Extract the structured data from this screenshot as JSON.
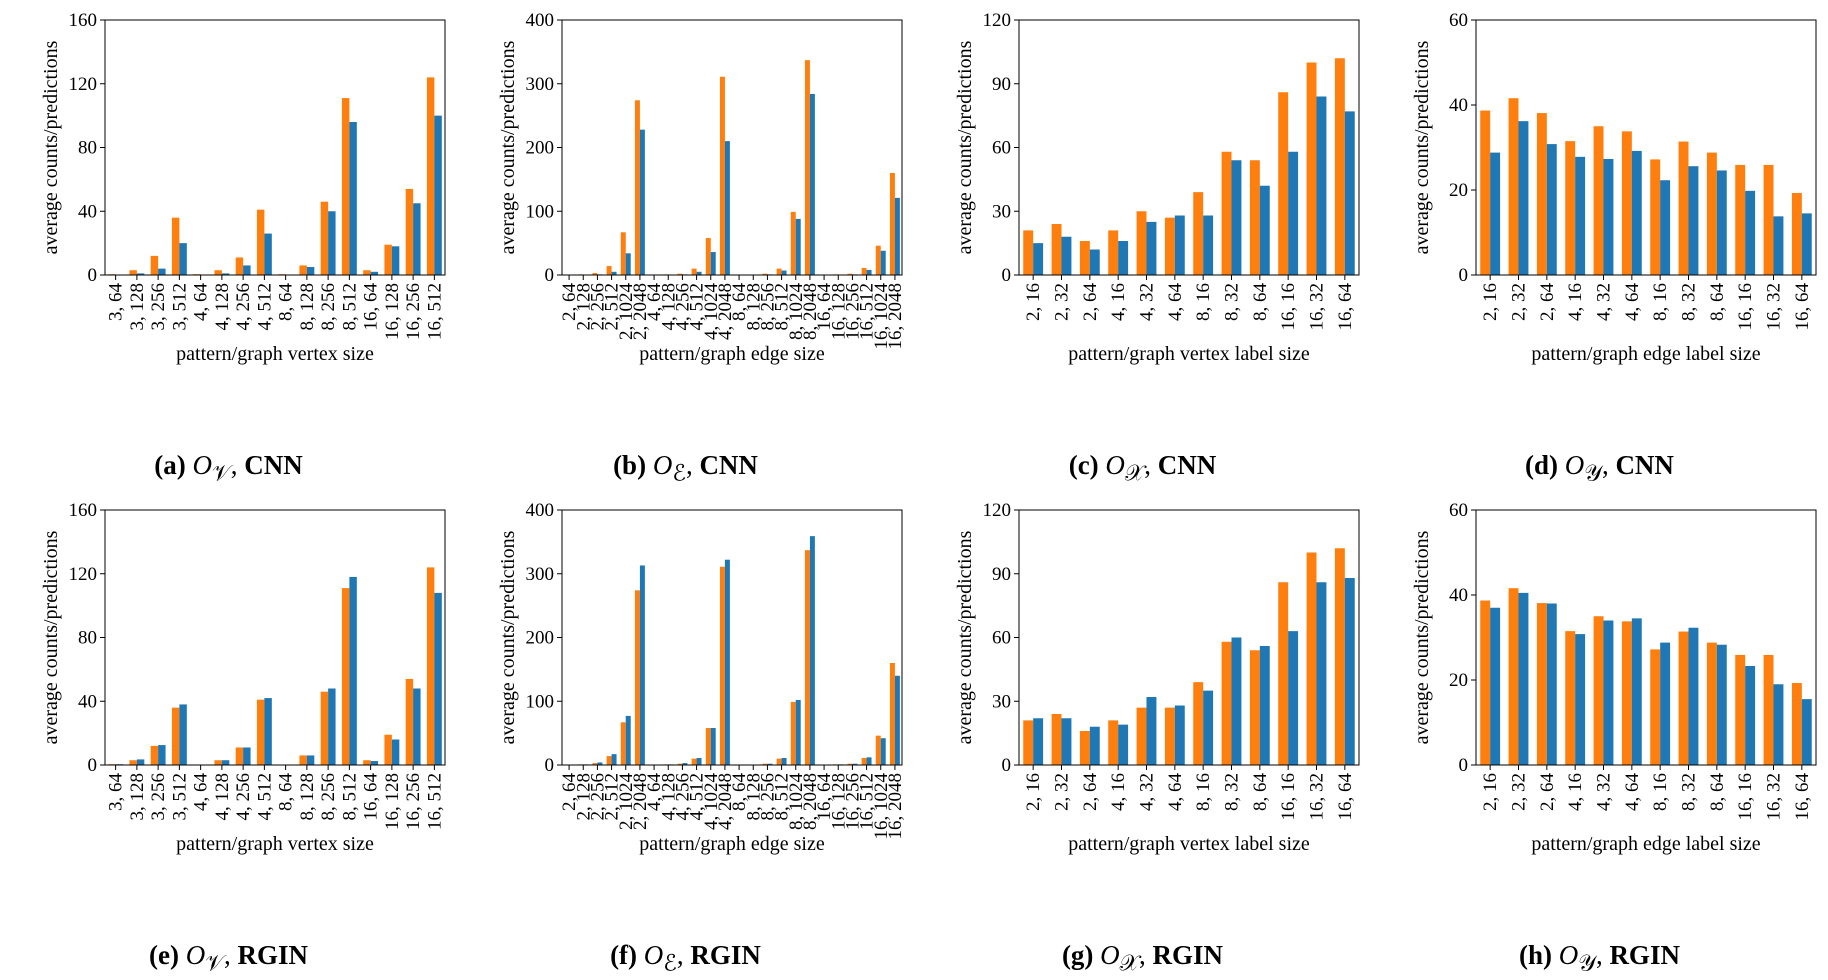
{
  "colors": {
    "orange": "#ff7f0e",
    "blue": "#1f77b4"
  },
  "ylabel": "average counts/predictions",
  "panels": [
    {
      "caption": {
        "label": "(a)",
        "symbol": "O",
        "subscript": "𝒱",
        "model": "CNN"
      },
      "chart_data": {
        "type": "bar",
        "xlabel": "pattern/graph vertex size",
        "ylabel": "average counts/predictions",
        "ylim": [
          0,
          160
        ],
        "yticks": [
          0,
          40,
          80,
          120,
          160
        ],
        "categories": [
          "3, 64",
          "3, 128",
          "3, 256",
          "3, 512",
          "4, 64",
          "4, 128",
          "4, 256",
          "4, 512",
          "8, 64",
          "8, 128",
          "8, 256",
          "8, 512",
          "16, 64",
          "16, 128",
          "16, 256",
          "16, 512"
        ],
        "series": [
          {
            "name": "count",
            "color": "orange",
            "values": [
              0.5,
              3,
              12,
              36,
              0.5,
              3,
              11,
              41,
              0.5,
              6,
              46,
              111,
              3,
              19,
              54,
              124
            ]
          },
          {
            "name": "prediction",
            "color": "blue",
            "values": [
              0.3,
              1,
              4,
              20,
              0.3,
              1,
              6,
              26,
              0.3,
              5,
              40,
              96,
              2,
              18,
              45,
              100
            ]
          }
        ]
      }
    },
    {
      "caption": {
        "label": "(b)",
        "symbol": "O",
        "subscript": "ℰ",
        "model": "CNN"
      },
      "chart_data": {
        "type": "bar",
        "xlabel": "pattern/graph edge size",
        "ylabel": "average counts/predictions",
        "ylim": [
          0,
          400
        ],
        "yticks": [
          0,
          100,
          200,
          300,
          400
        ],
        "categories": [
          "2, 64",
          "2, 128",
          "2, 256",
          "2, 512",
          "2, 1024",
          "2, 2048",
          "4, 64",
          "4, 128",
          "4, 256",
          "4, 512",
          "4, 1024",
          "4, 2048",
          "8, 64",
          "8, 128",
          "8, 256",
          "8, 512",
          "8, 1024",
          "8, 2048",
          "16, 64",
          "16, 128",
          "16, 256",
          "16, 512",
          "16, 1024",
          "16, 2048"
        ],
        "series": [
          {
            "name": "count",
            "color": "orange",
            "values": [
              0.5,
              1,
              3,
              14,
              67,
              274,
              0.5,
              1,
              2,
              10,
              58,
              311,
              0.5,
              0.5,
              2,
              10,
              99,
              337,
              0.5,
              1,
              2,
              11,
              46,
              160
            ]
          },
          {
            "name": "prediction",
            "color": "blue",
            "values": [
              0.3,
              0.5,
              1,
              5,
              34,
              228,
              0.3,
              0.5,
              1,
              5,
              36,
              210,
              0.3,
              0.3,
              1,
              7,
              88,
              284,
              0.3,
              0.5,
              1,
              8,
              38,
              121
            ]
          }
        ]
      }
    },
    {
      "caption": {
        "label": "(c)",
        "symbol": "O",
        "subscript": "𝒳",
        "model": "CNN"
      },
      "chart_data": {
        "type": "bar",
        "xlabel": "pattern/graph vertex label size",
        "ylabel": "average counts/predictions",
        "ylim": [
          0,
          120
        ],
        "yticks": [
          0,
          30,
          60,
          90,
          120
        ],
        "categories": [
          "2, 16",
          "2, 32",
          "2, 64",
          "4, 16",
          "4, 32",
          "4, 64",
          "8, 16",
          "8, 32",
          "8, 64",
          "16, 16",
          "16, 32",
          "16, 64"
        ],
        "series": [
          {
            "name": "count",
            "color": "orange",
            "values": [
              21,
              24,
              16,
              21,
              30,
              27,
              39,
              58,
              54,
              86,
              100,
              102
            ]
          },
          {
            "name": "prediction",
            "color": "blue",
            "values": [
              15,
              18,
              12,
              16,
              25,
              28,
              28,
              54,
              42,
              58,
              84,
              77
            ]
          }
        ]
      }
    },
    {
      "caption": {
        "label": "(d)",
        "symbol": "O",
        "subscript": "𝒴",
        "model": "CNN"
      },
      "chart_data": {
        "type": "bar",
        "xlabel": "pattern/graph edge label size",
        "ylabel": "average counts/predictions",
        "ylim": [
          0,
          60
        ],
        "yticks": [
          0,
          20,
          40,
          60
        ],
        "categories": [
          "2, 16",
          "2, 32",
          "2, 64",
          "4, 16",
          "4, 32",
          "4, 64",
          "8, 16",
          "8, 32",
          "8, 64",
          "16, 16",
          "16, 32",
          "16, 64"
        ],
        "series": [
          {
            "name": "count",
            "color": "orange",
            "values": [
              38.7,
              41.6,
              38.1,
              31.5,
              35.0,
              33.8,
              27.2,
              31.4,
              28.8,
              25.9,
              25.9,
              19.3
            ]
          },
          {
            "name": "prediction",
            "color": "blue",
            "values": [
              28.8,
              36.2,
              30.8,
              27.8,
              27.3,
              29.2,
              22.3,
              25.6,
              24.6,
              19.8,
              13.8,
              14.5
            ]
          }
        ]
      }
    },
    {
      "caption": {
        "label": "(e)",
        "symbol": "O",
        "subscript": "𝒱",
        "model": "RGIN"
      },
      "chart_data": {
        "type": "bar",
        "xlabel": "pattern/graph vertex size",
        "ylabel": "average counts/predictions",
        "ylim": [
          0,
          160
        ],
        "yticks": [
          0,
          40,
          80,
          120,
          160
        ],
        "categories": [
          "3, 64",
          "3, 128",
          "3, 256",
          "3, 512",
          "4, 64",
          "4, 128",
          "4, 256",
          "4, 512",
          "8, 64",
          "8, 128",
          "8, 256",
          "8, 512",
          "16, 64",
          "16, 128",
          "16, 256",
          "16, 512"
        ],
        "series": [
          {
            "name": "count",
            "color": "orange",
            "values": [
              0.5,
              3,
              12,
              36,
              0.3,
              3,
              11,
              41,
              0.3,
              6,
              46,
              111,
              3,
              19,
              54,
              124
            ]
          },
          {
            "name": "prediction",
            "color": "blue",
            "values": [
              0.5,
              3.5,
              12.5,
              38,
              0.3,
              3,
              11,
              42,
              0.3,
              6,
              48,
              118,
              2.5,
              16,
              48,
              108
            ]
          }
        ]
      }
    },
    {
      "caption": {
        "label": "(f)",
        "symbol": "O",
        "subscript": "ℰ",
        "model": "RGIN"
      },
      "chart_data": {
        "type": "bar",
        "xlabel": "pattern/graph edge size",
        "ylabel": "average counts/predictions",
        "ylim": [
          0,
          400
        ],
        "yticks": [
          0,
          100,
          200,
          300,
          400
        ],
        "categories": [
          "2, 64",
          "2, 128",
          "2, 256",
          "2, 512",
          "2, 1024",
          "2, 2048",
          "4, 64",
          "4, 128",
          "4, 256",
          "4, 512",
          "4, 1024",
          "4, 2048",
          "8, 64",
          "8, 128",
          "8, 256",
          "8, 512",
          "8, 1024",
          "8, 2048",
          "16, 64",
          "16, 128",
          "16, 256",
          "16, 512",
          "16, 1024",
          "16, 2048"
        ],
        "series": [
          {
            "name": "count",
            "color": "orange",
            "values": [
              0.5,
              1,
              3,
              14,
              67,
              274,
              0.5,
              1,
              2,
              10,
              58,
              311,
              0.5,
              0.5,
              2,
              10,
              99,
              337,
              0.5,
              1,
              2,
              11,
              46,
              160
            ]
          },
          {
            "name": "prediction",
            "color": "blue",
            "values": [
              0.5,
              1,
              4,
              17,
              77,
              313,
              0.5,
              1,
              3,
              11,
              58,
              322,
              0.5,
              0.5,
              2,
              11,
              102,
              359,
              0.5,
              1,
              2,
              12,
              42,
              140
            ]
          }
        ]
      }
    },
    {
      "caption": {
        "label": "(g)",
        "symbol": "O",
        "subscript": "𝒳",
        "model": "RGIN"
      },
      "chart_data": {
        "type": "bar",
        "xlabel": "pattern/graph vertex label size",
        "ylabel": "average counts/predictions",
        "ylim": [
          0,
          120
        ],
        "yticks": [
          0,
          30,
          60,
          90,
          120
        ],
        "categories": [
          "2, 16",
          "2, 32",
          "2, 64",
          "4, 16",
          "4, 32",
          "4, 64",
          "8, 16",
          "8, 32",
          "8, 64",
          "16, 16",
          "16, 32",
          "16, 64"
        ],
        "series": [
          {
            "name": "count",
            "color": "orange",
            "values": [
              21,
              24,
              16,
              21,
              27,
              27,
              39,
              58,
              54,
              86,
              100,
              102
            ]
          },
          {
            "name": "prediction",
            "color": "blue",
            "values": [
              22,
              22,
              18,
              19,
              32,
              28,
              35,
              60,
              56,
              63,
              86,
              88
            ]
          }
        ]
      }
    },
    {
      "caption": {
        "label": "(h)",
        "symbol": "O",
        "subscript": "𝒴",
        "model": "RGIN"
      },
      "chart_data": {
        "type": "bar",
        "xlabel": "pattern/graph edge label size",
        "ylabel": "average counts/predictions",
        "ylim": [
          0,
          60
        ],
        "yticks": [
          0,
          20,
          40,
          60
        ],
        "categories": [
          "2, 16",
          "2, 32",
          "2, 64",
          "4, 16",
          "4, 32",
          "4, 64",
          "8, 16",
          "8, 32",
          "8, 64",
          "16, 16",
          "16, 32",
          "16, 64"
        ],
        "series": [
          {
            "name": "count",
            "color": "orange",
            "values": [
              38.7,
              41.6,
              38.1,
              31.5,
              35.0,
              33.8,
              27.2,
              31.4,
              28.8,
              25.9,
              25.9,
              19.3
            ]
          },
          {
            "name": "prediction",
            "color": "blue",
            "values": [
              37.0,
              40.5,
              38.0,
              30.8,
              34.0,
              34.5,
              28.8,
              32.3,
              28.3,
              23.3,
              19.0,
              15.5
            ]
          }
        ]
      }
    }
  ]
}
